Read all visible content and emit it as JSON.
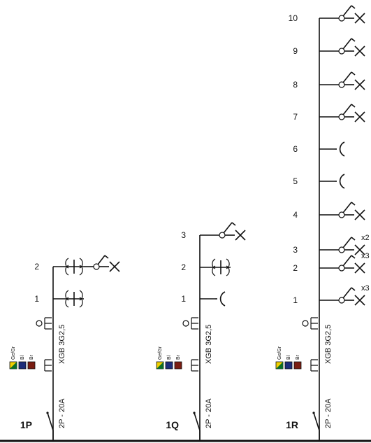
{
  "panels": [
    {
      "id": "1P",
      "breaker": "2P - 20A",
      "cable": "XGB 3G2,5",
      "wires": [
        "Ge/Gr",
        "Bl",
        "Br"
      ],
      "wire_colors": [
        "#f0d000",
        "#1c2d7a",
        "#7a1d12"
      ],
      "circuits": [
        {
          "num": "1",
          "symbol": "double-socket"
        },
        {
          "num": "2",
          "symbol": "socket-and-switched-lamp"
        }
      ]
    },
    {
      "id": "1Q",
      "breaker": "2P - 20A",
      "cable": "XGB 3G2,5",
      "wires": [
        "Ge/Gr",
        "Bl",
        "Br"
      ],
      "wire_colors": [
        "#f0d000",
        "#1c2d7a",
        "#7a1d12"
      ],
      "circuits": [
        {
          "num": "1",
          "symbol": "socket"
        },
        {
          "num": "2",
          "symbol": "double-socket"
        },
        {
          "num": "3",
          "symbol": "switched-lamp"
        }
      ]
    },
    {
      "id": "1R",
      "breaker": "2P - 20A",
      "cable": "XGB 3G2,5",
      "wires": [
        "Ge/Gr",
        "Bl",
        "Br"
      ],
      "wire_colors": [
        "#f0d000",
        "#1c2d7a",
        "#7a1d12"
      ],
      "circuits": [
        {
          "num": "1",
          "symbol": "switched-lamp",
          "mult": "x3"
        },
        {
          "num": "2",
          "symbol": "switched-lamp",
          "mult": "x3"
        },
        {
          "num": "3",
          "symbol": "switched-lamp",
          "mult": "x2"
        },
        {
          "num": "4",
          "symbol": "switched-lamp"
        },
        {
          "num": "5",
          "symbol": "socket"
        },
        {
          "num": "6",
          "symbol": "socket"
        },
        {
          "num": "7",
          "symbol": "switched-lamp"
        },
        {
          "num": "8",
          "symbol": "switched-lamp"
        },
        {
          "num": "9",
          "symbol": "switched-lamp"
        },
        {
          "num": "10",
          "symbol": "switched-lamp"
        }
      ]
    }
  ]
}
